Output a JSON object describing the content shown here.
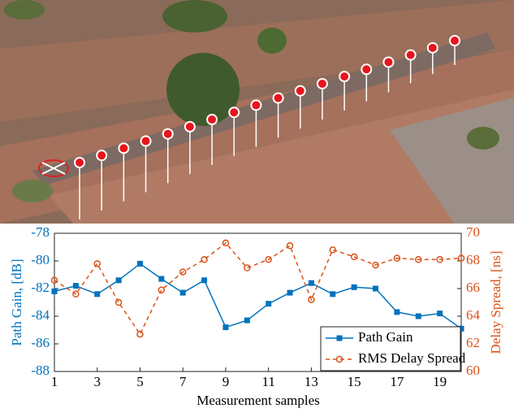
{
  "chart_data": {
    "type": "line",
    "xlabel": "Measurement samples",
    "ylabel": "Path Gain, [dB]",
    "y2label": "Delay Spread, [ns]",
    "x": [
      1,
      2,
      3,
      4,
      5,
      6,
      7,
      8,
      9,
      10,
      11,
      12,
      13,
      14,
      15,
      16,
      17,
      18,
      19,
      20
    ],
    "xlim": [
      1,
      20
    ],
    "xticks": [
      1,
      3,
      5,
      7,
      9,
      11,
      13,
      15,
      17,
      19
    ],
    "ylim": [
      -88,
      -78
    ],
    "yticks": [
      -88,
      -86,
      -84,
      -82,
      -80,
      -78
    ],
    "y2lim": [
      60,
      70
    ],
    "y2ticks": [
      60,
      62,
      64,
      66,
      68,
      70
    ],
    "grid": false,
    "legend": "lower-right",
    "series": [
      {
        "name": "Path Gain",
        "color": "#0072bd",
        "axis": "y",
        "marker": "square",
        "dash": "solid",
        "values": [
          -82.2,
          -81.8,
          -82.4,
          -81.4,
          -80.2,
          -81.3,
          -82.3,
          -81.4,
          -84.8,
          -84.3,
          -83.1,
          -82.3,
          -81.6,
          -82.4,
          -81.9,
          -82.0,
          -83.7,
          -84.0,
          -83.8,
          -84.9
        ]
      },
      {
        "name": "RMS Delay Spread",
        "color": "#d95319",
        "axis": "y2",
        "marker": "circle",
        "dash": "dashed",
        "values": [
          66.6,
          65.6,
          67.8,
          65.0,
          62.7,
          65.9,
          67.2,
          68.1,
          69.3,
          67.5,
          68.1,
          69.1,
          65.2,
          68.8,
          68.3,
          67.7,
          68.2,
          68.1,
          68.1,
          68.2
        ]
      }
    ]
  }
}
